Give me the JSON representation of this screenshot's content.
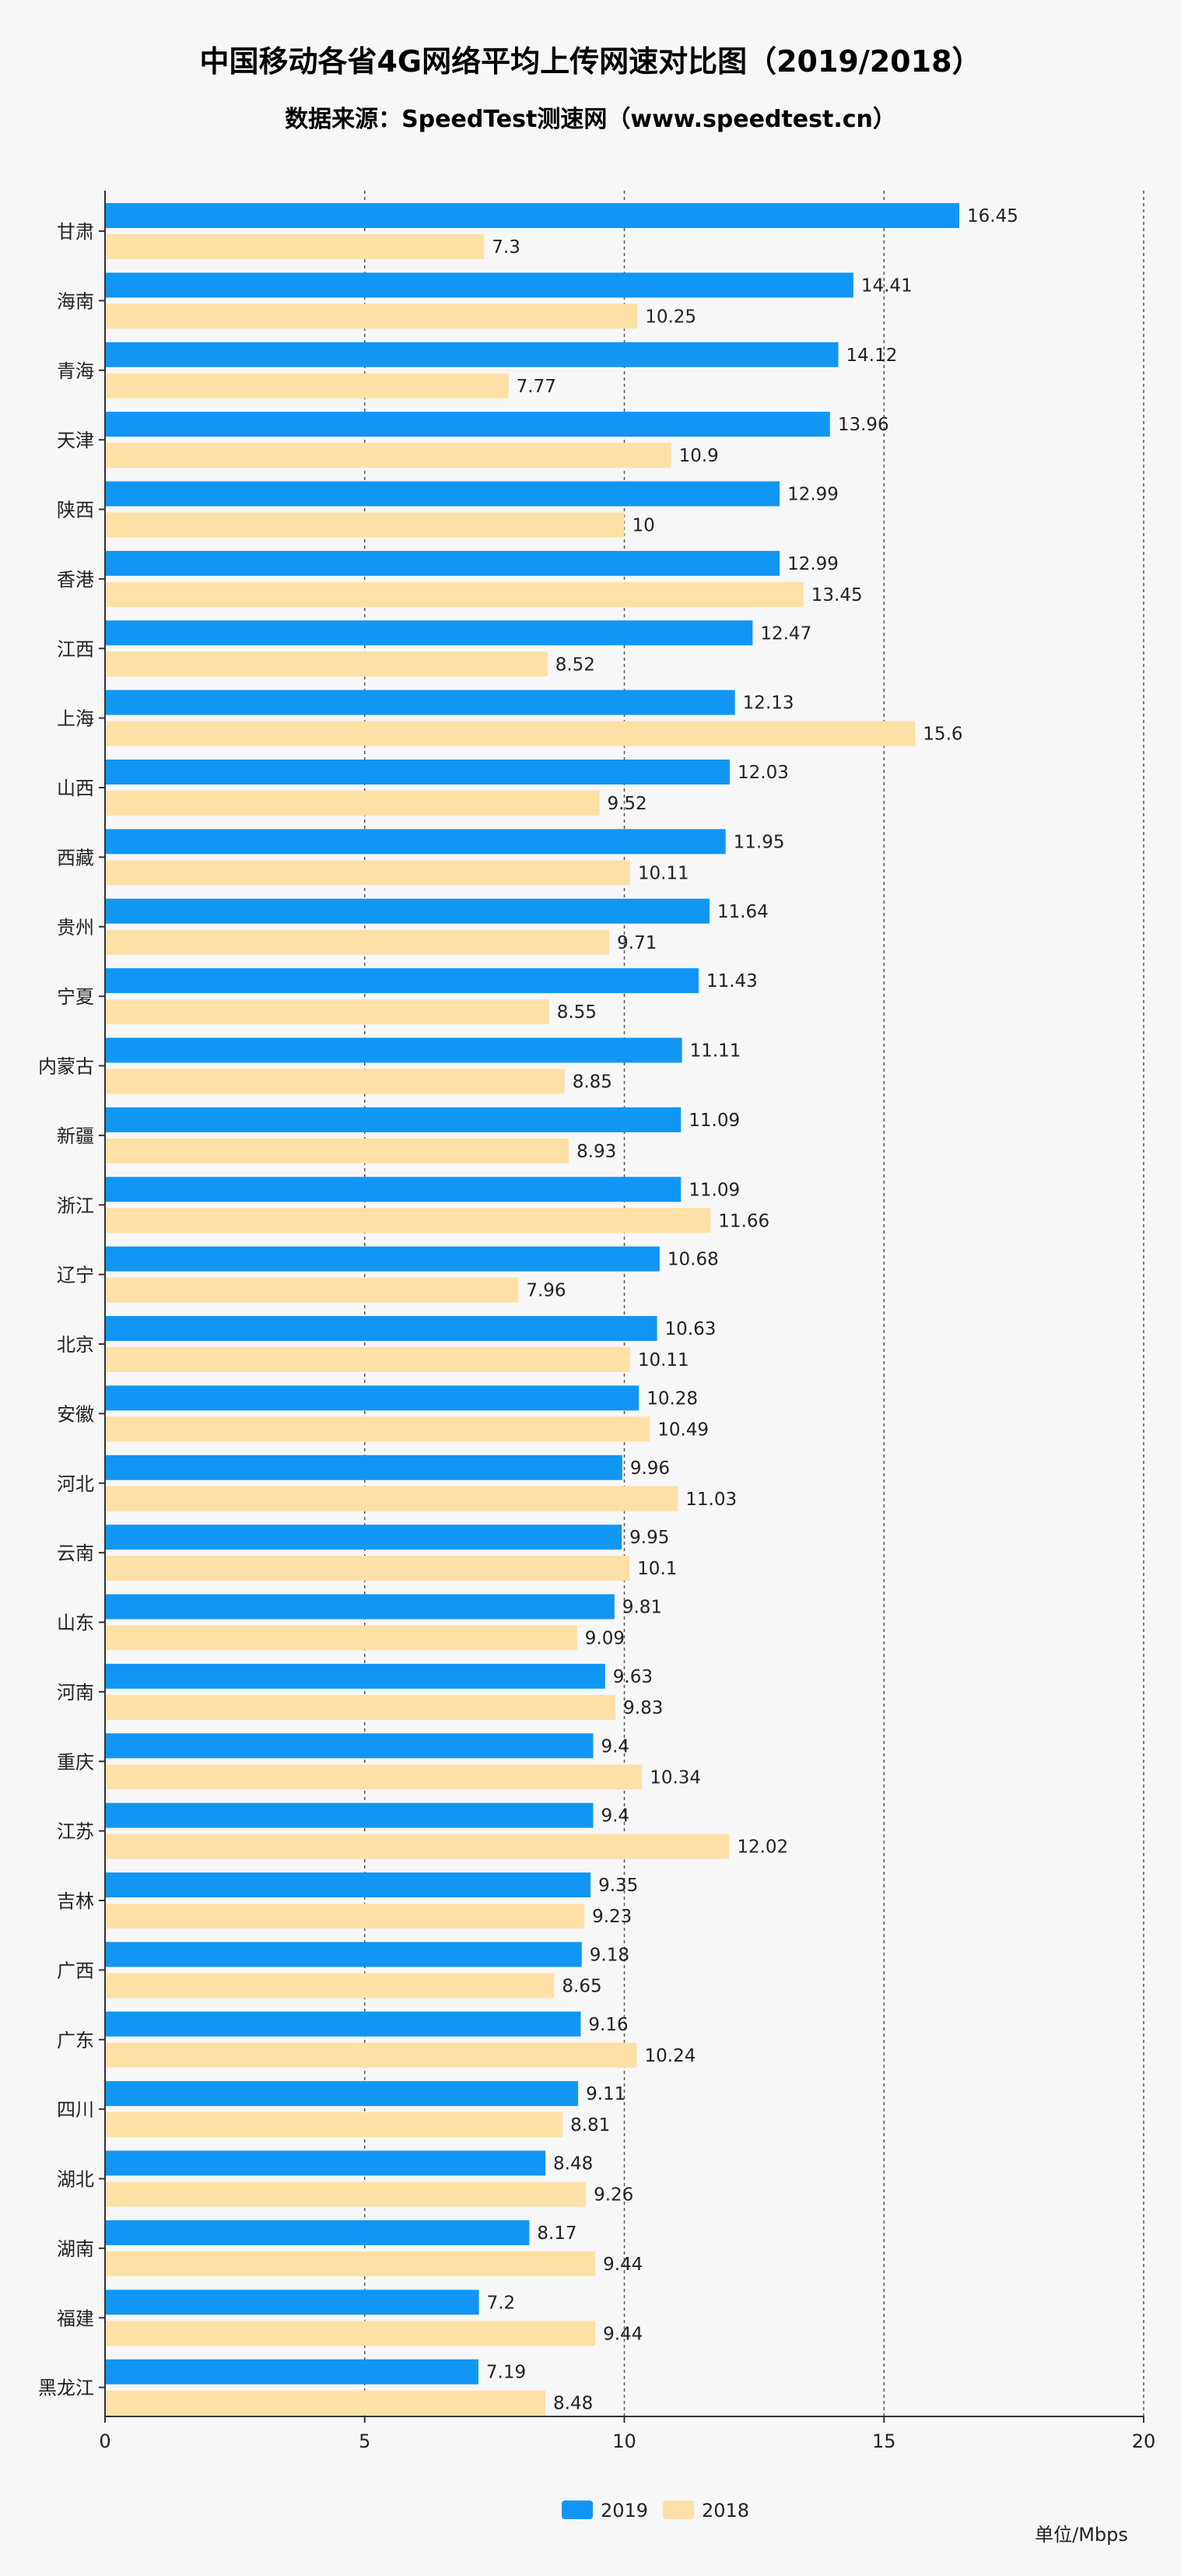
{
  "chart_data": {
    "type": "bar",
    "orientation": "horizontal",
    "title": "中国移动各省4G网络平均上传网速对比图（2019/2018）",
    "subtitle": "数据来源：SpeedTest测速网（www.speedtest.cn）",
    "unit": "单位/Mbps",
    "xlim": [
      0,
      20
    ],
    "xticks": [
      0,
      5,
      10,
      15,
      20
    ],
    "grid": "vertical-dashed",
    "legend_position": "bottom-center",
    "categories": [
      "甘肃",
      "海南",
      "青海",
      "天津",
      "陕西",
      "香港",
      "江西",
      "上海",
      "山西",
      "西藏",
      "贵州",
      "宁夏",
      "内蒙古",
      "新疆",
      "浙江",
      "辽宁",
      "北京",
      "安徽",
      "河北",
      "云南",
      "山东",
      "河南",
      "重庆",
      "江苏",
      "吉林",
      "广西",
      "广东",
      "四川",
      "湖北",
      "湖南",
      "福建",
      "黑龙江"
    ],
    "series": [
      {
        "name": "2019",
        "color": "#1296f3",
        "values": [
          16.45,
          14.41,
          14.12,
          13.96,
          12.99,
          12.99,
          12.47,
          12.13,
          12.03,
          11.95,
          11.64,
          11.43,
          11.11,
          11.09,
          11.09,
          10.68,
          10.63,
          10.28,
          9.96,
          9.95,
          9.81,
          9.63,
          9.4,
          9.4,
          9.35,
          9.18,
          9.16,
          9.11,
          8.48,
          8.17,
          7.2,
          7.19
        ]
      },
      {
        "name": "2018",
        "color": "#ffe0a6",
        "values": [
          7.3,
          10.25,
          7.77,
          10.9,
          10,
          13.45,
          8.52,
          15.6,
          9.52,
          10.11,
          9.71,
          8.55,
          8.85,
          8.93,
          11.66,
          7.96,
          10.11,
          10.49,
          11.03,
          10.1,
          9.09,
          9.83,
          10.34,
          12.02,
          9.23,
          8.65,
          10.24,
          8.81,
          9.26,
          9.44,
          9.44,
          8.48
        ]
      }
    ]
  }
}
